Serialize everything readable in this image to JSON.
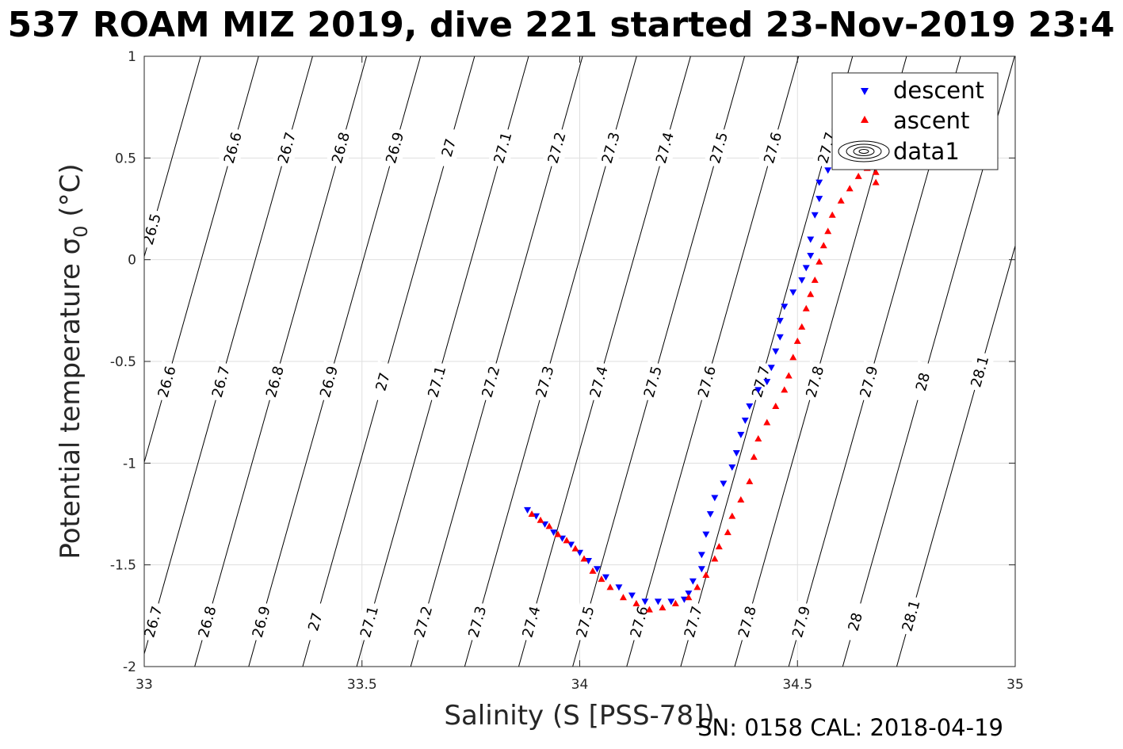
{
  "figure": {
    "title": "537 ROAM MIZ 2019, dive 221 started 23-Nov-2019 23:4",
    "footer": "SN: 0158  CAL: 2018-04-19"
  },
  "chart_data": {
    "type": "scatter",
    "xlabel": "Salinity (S [PSS-78])",
    "ylabel_main": "Potential temperature σ",
    "ylabel_sub": "0",
    "ylabel_unit": " (°C)",
    "xlim": [
      33,
      35
    ],
    "ylim": [
      -2,
      1
    ],
    "xticks": [
      33,
      33.5,
      34,
      34.5,
      35
    ],
    "xtick_labels": [
      "33",
      "33.5",
      "34",
      "34.5",
      "35"
    ],
    "yticks": [
      1,
      0.5,
      0,
      -0.5,
      -1,
      -1.5,
      -2
    ],
    "ytick_labels": [
      "1",
      "0.5",
      "0",
      "-0.5",
      "-1",
      "-1.5",
      "-2"
    ],
    "grid": true,
    "legend_position": "top-right",
    "legend": [
      "descent",
      "ascent",
      "data1"
    ],
    "contours": {
      "slope_degC_per_psu": 7.6,
      "levels": [
        {
          "label": "26.5",
          "s_at_0": 32.998,
          "labels_at_t": [
            0.15
          ]
        },
        {
          "label": "26.6",
          "s_at_0": 33.131,
          "labels_at_t": [
            0.55,
            -0.6,
            -1.78
          ]
        },
        {
          "label": "26.7",
          "s_at_0": 33.255,
          "labels_at_t": [
            0.55,
            -0.6,
            -1.78
          ]
        },
        {
          "label": "26.8",
          "s_at_0": 33.379,
          "labels_at_t": [
            0.55,
            -0.6,
            -1.78
          ]
        },
        {
          "label": "26.9",
          "s_at_0": 33.503,
          "labels_at_t": [
            0.55,
            -0.6,
            -1.78
          ]
        },
        {
          "label": "27",
          "s_at_0": 33.627,
          "labels_at_t": [
            0.55,
            -0.6,
            -1.78
          ]
        },
        {
          "label": "27.1",
          "s_at_0": 33.751,
          "labels_at_t": [
            0.55,
            -0.6,
            -1.78
          ]
        },
        {
          "label": "27.2",
          "s_at_0": 33.875,
          "labels_at_t": [
            0.55,
            -0.6,
            -1.78
          ]
        },
        {
          "label": "27.3",
          "s_at_0": 33.999,
          "labels_at_t": [
            0.55,
            -0.6,
            -1.78
          ]
        },
        {
          "label": "27.4",
          "s_at_0": 34.123,
          "labels_at_t": [
            0.55,
            -0.6,
            -1.78
          ]
        },
        {
          "label": "27.5",
          "s_at_0": 34.247,
          "labels_at_t": [
            0.55,
            -0.6,
            -1.78
          ]
        },
        {
          "label": "27.6",
          "s_at_0": 34.371,
          "labels_at_t": [
            0.55,
            -0.6,
            -1.78
          ]
        },
        {
          "label": "27.7",
          "s_at_0": 34.495,
          "labels_at_t": [
            0.55,
            -0.6,
            -1.78
          ]
        },
        {
          "label": "27.8",
          "s_at_0": 34.619,
          "labels_at_t": [
            -0.6,
            -1.78
          ]
        },
        {
          "label": "27.9",
          "s_at_0": 34.743,
          "labels_at_t": [
            -0.6,
            -1.78
          ]
        },
        {
          "label": "28",
          "s_at_0": 34.867,
          "labels_at_t": [
            -0.6,
            -1.78
          ]
        },
        {
          "label": "28.1",
          "s_at_0": 34.991,
          "labels_at_t": [
            -0.55,
            -1.75
          ]
        }
      ]
    },
    "series": [
      {
        "name": "descent",
        "color": "#0000ff",
        "marker": "triangle-down",
        "points": [
          [
            33.88,
            -1.23
          ],
          [
            33.9,
            -1.26
          ],
          [
            33.92,
            -1.3
          ],
          [
            33.94,
            -1.34
          ],
          [
            33.96,
            -1.37
          ],
          [
            33.98,
            -1.4
          ],
          [
            34.0,
            -1.44
          ],
          [
            34.02,
            -1.48
          ],
          [
            34.04,
            -1.52
          ],
          [
            34.06,
            -1.56
          ],
          [
            34.09,
            -1.61
          ],
          [
            34.12,
            -1.65
          ],
          [
            34.15,
            -1.68
          ],
          [
            34.18,
            -1.68
          ],
          [
            34.21,
            -1.68
          ],
          [
            34.24,
            -1.67
          ],
          [
            34.25,
            -1.64
          ],
          [
            34.26,
            -1.58
          ],
          [
            34.28,
            -1.52
          ],
          [
            34.28,
            -1.45
          ],
          [
            34.29,
            -1.35
          ],
          [
            34.3,
            -1.25
          ],
          [
            34.31,
            -1.17
          ],
          [
            34.33,
            -1.1
          ],
          [
            34.35,
            -1.02
          ],
          [
            34.36,
            -0.95
          ],
          [
            34.37,
            -0.86
          ],
          [
            34.38,
            -0.79
          ],
          [
            34.39,
            -0.72
          ],
          [
            34.41,
            -0.64
          ],
          [
            34.43,
            -0.6
          ],
          [
            34.44,
            -0.53
          ],
          [
            34.45,
            -0.45
          ],
          [
            34.46,
            -0.38
          ],
          [
            34.46,
            -0.3
          ],
          [
            34.47,
            -0.23
          ],
          [
            34.49,
            -0.16
          ],
          [
            34.51,
            -0.1
          ],
          [
            34.52,
            -0.04
          ],
          [
            34.53,
            0.02
          ],
          [
            34.53,
            0.1
          ],
          [
            34.54,
            0.22
          ],
          [
            34.55,
            0.3
          ],
          [
            34.55,
            0.38
          ],
          [
            34.57,
            0.44
          ],
          [
            34.59,
            0.49
          ]
        ]
      },
      {
        "name": "ascent",
        "color": "#ff0000",
        "marker": "triangle-up",
        "points": [
          [
            33.89,
            -1.25
          ],
          [
            33.91,
            -1.28
          ],
          [
            33.93,
            -1.31
          ],
          [
            33.95,
            -1.35
          ],
          [
            33.97,
            -1.38
          ],
          [
            33.99,
            -1.42
          ],
          [
            34.01,
            -1.47
          ],
          [
            34.03,
            -1.53
          ],
          [
            34.05,
            -1.57
          ],
          [
            34.07,
            -1.61
          ],
          [
            34.1,
            -1.66
          ],
          [
            34.13,
            -1.69
          ],
          [
            34.16,
            -1.72
          ],
          [
            34.19,
            -1.71
          ],
          [
            34.22,
            -1.69
          ],
          [
            34.25,
            -1.66
          ],
          [
            34.27,
            -1.61
          ],
          [
            34.29,
            -1.55
          ],
          [
            34.31,
            -1.47
          ],
          [
            34.32,
            -1.41
          ],
          [
            34.34,
            -1.34
          ],
          [
            34.35,
            -1.26
          ],
          [
            34.37,
            -1.18
          ],
          [
            34.39,
            -1.09
          ],
          [
            34.4,
            -0.97
          ],
          [
            34.41,
            -0.88
          ],
          [
            34.43,
            -0.8
          ],
          [
            34.45,
            -0.72
          ],
          [
            34.47,
            -0.64
          ],
          [
            34.48,
            -0.57
          ],
          [
            34.49,
            -0.48
          ],
          [
            34.5,
            -0.4
          ],
          [
            34.51,
            -0.33
          ],
          [
            34.52,
            -0.24
          ],
          [
            34.53,
            -0.17
          ],
          [
            34.54,
            -0.1
          ],
          [
            34.55,
            -0.01
          ],
          [
            34.56,
            0.07
          ],
          [
            34.57,
            0.14
          ],
          [
            34.58,
            0.22
          ],
          [
            34.6,
            0.29
          ],
          [
            34.62,
            0.35
          ],
          [
            34.64,
            0.41
          ],
          [
            34.66,
            0.45
          ],
          [
            34.68,
            0.43
          ],
          [
            34.68,
            0.38
          ]
        ]
      }
    ]
  }
}
